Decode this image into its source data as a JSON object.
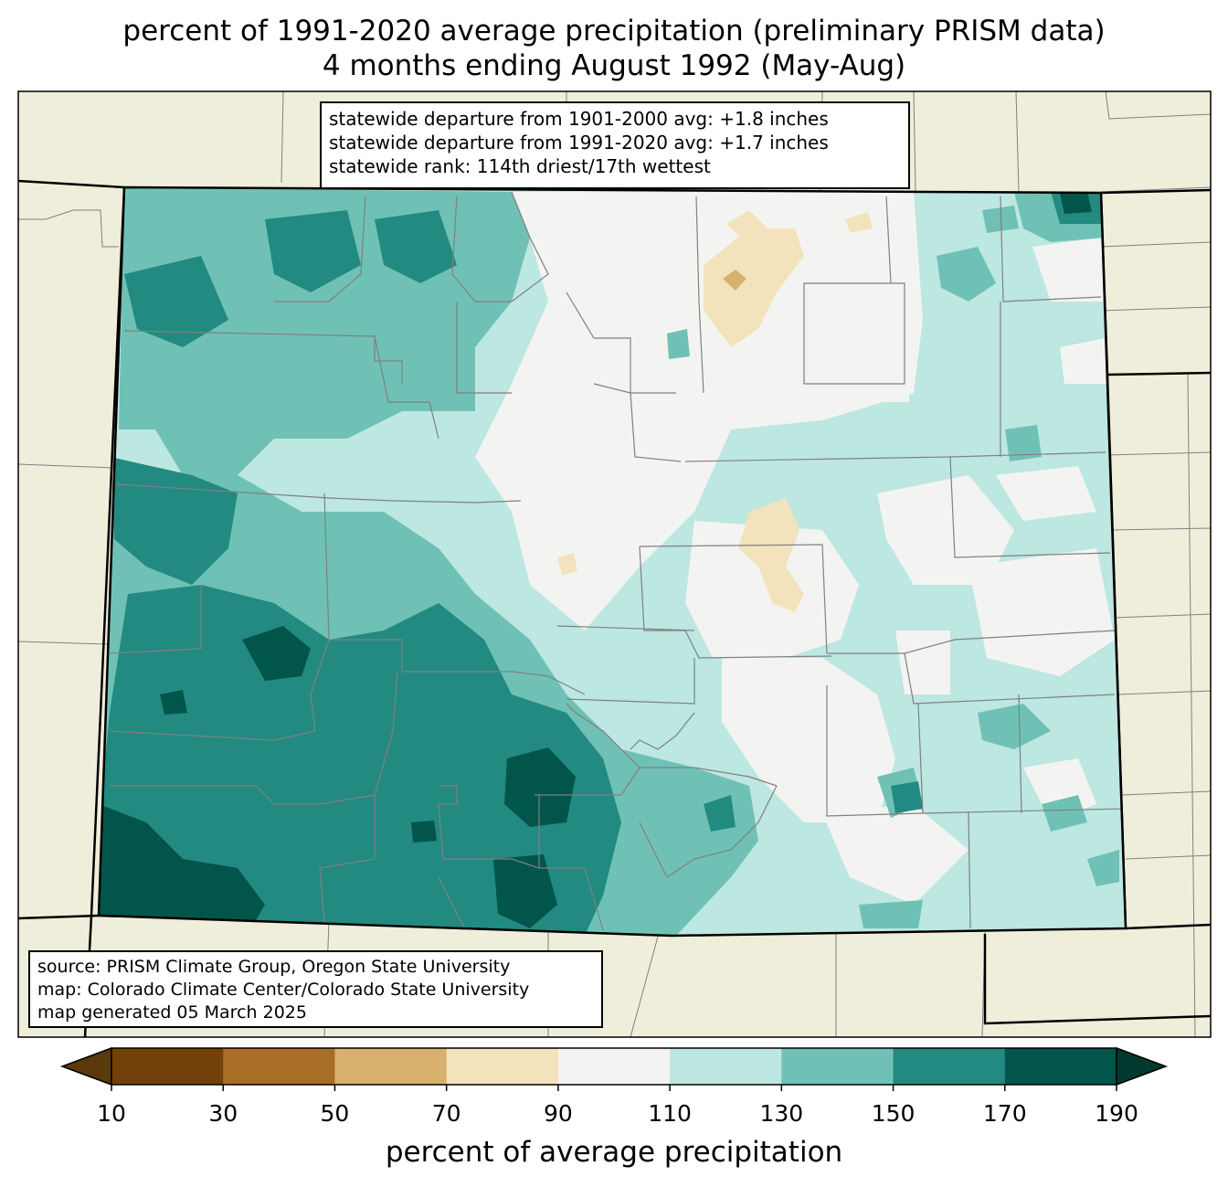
{
  "title": {
    "line1": "percent of 1991-2020 average precipitation (preliminary PRISM data)",
    "line2": "4 months ending August 1992 (May-Aug)"
  },
  "stats_box": {
    "line1": "statewide departure from 1901-2000 avg: +1.8 inches",
    "line2": "statewide departure from 1991-2020 avg: +1.7 inches",
    "line3": "statewide rank: 114th driest/17th wettest"
  },
  "source_box": {
    "line1": "source: PRISM Climate Group, Oregon State University",
    "line2": "map: Colorado Climate Center/Colorado State University",
    "line3": "map generated 05 March 2025"
  },
  "colorbar": {
    "label": "percent of average precipitation",
    "ticks": [
      "10",
      "30",
      "50",
      "70",
      "90",
      "110",
      "130",
      "150",
      "170",
      "190"
    ],
    "colors": [
      "#5a3a0c",
      "#714109",
      "#a86e26",
      "#d7b16d",
      "#f3e3bd",
      "#f3f4f2",
      "#bde7e1",
      "#6fc1b5",
      "#228a80",
      "#01554b",
      "#00392f"
    ]
  },
  "palette": {
    "background_land": "#efeedb",
    "state_border": "#000000",
    "county_border": "#808080"
  }
}
